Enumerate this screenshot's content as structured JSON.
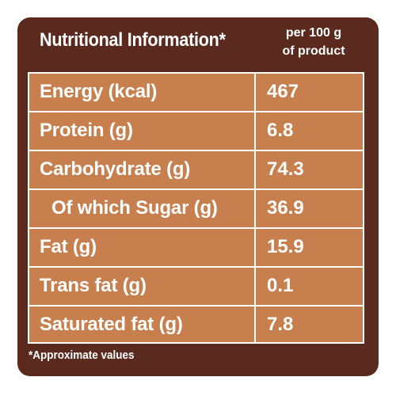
{
  "header": {
    "title": "Nutritional Information*",
    "per_line1": "per 100 g",
    "per_line2": "of product"
  },
  "rows": [
    {
      "label": "Energy (kcal)",
      "value": "467"
    },
    {
      "label": "Protein (g)",
      "value": "6.8"
    },
    {
      "label": "Carbohydrate (g)",
      "value": "74.3"
    },
    {
      "label": "Of which Sugar (g)",
      "value": "36.9"
    },
    {
      "label": "Fat (g)",
      "value": "15.9"
    },
    {
      "label": "Trans fat (g)",
      "value": "0.1"
    },
    {
      "label": "Saturated fat (g)",
      "value": "7.8"
    }
  ],
  "footnote": "*Approximate values",
  "colors": {
    "frame": "#5a2a1e",
    "table_fill": "#c77f4e",
    "text": "#ffffff"
  }
}
